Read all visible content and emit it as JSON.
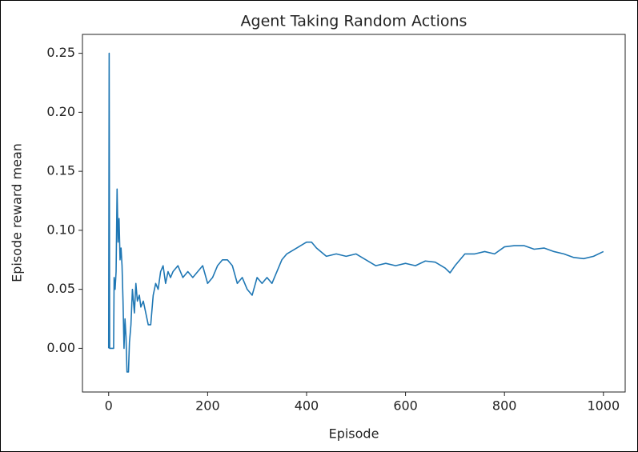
{
  "chart_data": {
    "type": "line",
    "title": "Agent Taking Random Actions",
    "x_label": "Episode",
    "y_label": "Episode reward mean",
    "x": [
      0,
      1,
      2,
      10,
      11,
      13,
      15,
      17,
      19,
      21,
      23,
      25,
      27,
      29,
      31,
      33,
      35,
      37,
      40,
      42,
      45,
      48,
      52,
      55,
      58,
      62,
      65,
      70,
      75,
      80,
      85,
      90,
      95,
      100,
      105,
      110,
      115,
      120,
      125,
      130,
      140,
      150,
      160,
      170,
      180,
      190,
      200,
      210,
      220,
      230,
      240,
      250,
      260,
      270,
      280,
      290,
      300,
      310,
      320,
      330,
      340,
      350,
      360,
      380,
      400,
      410,
      420,
      440,
      460,
      480,
      500,
      520,
      540,
      560,
      580,
      600,
      620,
      640,
      660,
      680,
      690,
      700,
      720,
      740,
      760,
      780,
      800,
      820,
      840,
      860,
      880,
      900,
      920,
      940,
      960,
      980,
      1000
    ],
    "series": [
      {
        "name": "Episode reward mean",
        "color": "#1f77b4",
        "values": [
          0,
          0.25,
          0,
          0,
          0.06,
          0.05,
          0.065,
          0.135,
          0.09,
          0.11,
          0.075,
          0.085,
          0.07,
          0.04,
          0,
          0.025,
          0.01,
          -0.02,
          -0.02,
          0.005,
          0.02,
          0.05,
          0.03,
          0.055,
          0.04,
          0.045,
          0.035,
          0.04,
          0.03,
          0.02,
          0.02,
          0.045,
          0.055,
          0.05,
          0.065,
          0.07,
          0.055,
          0.065,
          0.06,
          0.065,
          0.07,
          0.06,
          0.065,
          0.06,
          0.065,
          0.07,
          0.055,
          0.06,
          0.07,
          0.075,
          0.075,
          0.07,
          0.055,
          0.06,
          0.05,
          0.045,
          0.06,
          0.055,
          0.06,
          0.055,
          0.065,
          0.075,
          0.08,
          0.085,
          0.09,
          0.09,
          0.085,
          0.078,
          0.08,
          0.078,
          0.08,
          0.075,
          0.07,
          0.072,
          0.07,
          0.072,
          0.07,
          0.074,
          0.073,
          0.068,
          0.064,
          0.07,
          0.08,
          0.08,
          0.082,
          0.08,
          0.086,
          0.087,
          0.087,
          0.084,
          0.085,
          0.082,
          0.08,
          0.077,
          0.076,
          0.078,
          0.082
        ]
      }
    ],
    "xlim": [
      -53,
      1044
    ],
    "ylim": [
      -0.037,
      0.266
    ],
    "xticks": [
      0,
      200,
      400,
      600,
      800,
      1000
    ],
    "yticks": [
      {
        "value": 0,
        "label": "0.00"
      },
      0.05,
      {
        "value": 0.1,
        "label": "0.10"
      },
      0.15,
      {
        "value": 0.2,
        "label": "0.20"
      },
      0.25
    ]
  }
}
